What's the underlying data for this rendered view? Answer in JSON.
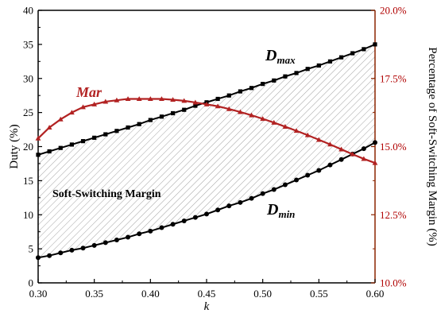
{
  "chart_data": {
    "type": "line",
    "xlabel": "k",
    "ylabel": "Duty (%)",
    "y2label": "Percentage of Soft-Switching Margin (%)",
    "xlim": [
      0.3,
      0.6
    ],
    "ylim": [
      0,
      40
    ],
    "y2lim": [
      10.0,
      20.0
    ],
    "x_ticks": [
      "0.30",
      "0.35",
      "0.40",
      "0.45",
      "0.50",
      "0.55",
      "0.60"
    ],
    "y_ticks": [
      "0",
      "5",
      "10",
      "15",
      "20",
      "25",
      "30",
      "35",
      "40"
    ],
    "y2_ticks": [
      "10.0%",
      "12.5%",
      "15.0%",
      "17.5%",
      "20.0%"
    ],
    "grid": false,
    "annotations": {
      "dmax_main": "D",
      "dmax_sub": "max",
      "dmin_main": "D",
      "dmin_sub": "min",
      "mar": "Mar",
      "region": "Soft-Switching Margin"
    },
    "series": [
      {
        "axis": "left",
        "color": "#000000",
        "marker": "square",
        "x": [
          0.3,
          0.31,
          0.32,
          0.33,
          0.34,
          0.35,
          0.36,
          0.37,
          0.38,
          0.39,
          0.4,
          0.41,
          0.42,
          0.43,
          0.44,
          0.45,
          0.46,
          0.47,
          0.48,
          0.49,
          0.5,
          0.51,
          0.52,
          0.53,
          0.54,
          0.55,
          0.56,
          0.57,
          0.58,
          0.59,
          0.6
        ],
        "y": [
          18.8,
          19.3,
          19.8,
          20.3,
          20.8,
          21.3,
          21.8,
          22.3,
          22.8,
          23.3,
          23.9,
          24.4,
          24.9,
          25.4,
          26.0,
          26.5,
          27.0,
          27.5,
          28.1,
          28.6,
          29.2,
          29.7,
          30.3,
          30.8,
          31.4,
          31.9,
          32.5,
          33.1,
          33.7,
          34.3,
          35.0
        ]
      },
      {
        "axis": "left",
        "color": "#000000",
        "marker": "circle",
        "x": [
          0.3,
          0.31,
          0.32,
          0.33,
          0.34,
          0.35,
          0.36,
          0.37,
          0.38,
          0.39,
          0.4,
          0.41,
          0.42,
          0.43,
          0.44,
          0.45,
          0.46,
          0.47,
          0.48,
          0.49,
          0.5,
          0.51,
          0.52,
          0.53,
          0.54,
          0.55,
          0.56,
          0.57,
          0.58,
          0.59,
          0.6
        ],
        "y": [
          3.7,
          4.0,
          4.4,
          4.8,
          5.1,
          5.5,
          5.9,
          6.3,
          6.7,
          7.2,
          7.6,
          8.1,
          8.6,
          9.1,
          9.6,
          10.1,
          10.7,
          11.3,
          11.8,
          12.4,
          13.1,
          13.7,
          14.4,
          15.1,
          15.8,
          16.5,
          17.3,
          18.1,
          18.9,
          19.7,
          20.6
        ]
      },
      {
        "axis": "right",
        "color": "#b22222",
        "marker": "triangle",
        "x": [
          0.3,
          0.31,
          0.32,
          0.33,
          0.34,
          0.35,
          0.36,
          0.37,
          0.38,
          0.39,
          0.4,
          0.41,
          0.42,
          0.43,
          0.44,
          0.45,
          0.46,
          0.47,
          0.48,
          0.49,
          0.5,
          0.51,
          0.52,
          0.53,
          0.54,
          0.55,
          0.56,
          0.57,
          0.58,
          0.59,
          0.6
        ],
        "y": [
          15.3,
          15.7,
          16.0,
          16.25,
          16.45,
          16.55,
          16.65,
          16.7,
          16.75,
          16.75,
          16.75,
          16.75,
          16.72,
          16.68,
          16.62,
          16.55,
          16.48,
          16.38,
          16.27,
          16.15,
          16.02,
          15.88,
          15.73,
          15.58,
          15.42,
          15.25,
          15.08,
          14.9,
          14.72,
          14.55,
          14.4
        ]
      }
    ]
  }
}
